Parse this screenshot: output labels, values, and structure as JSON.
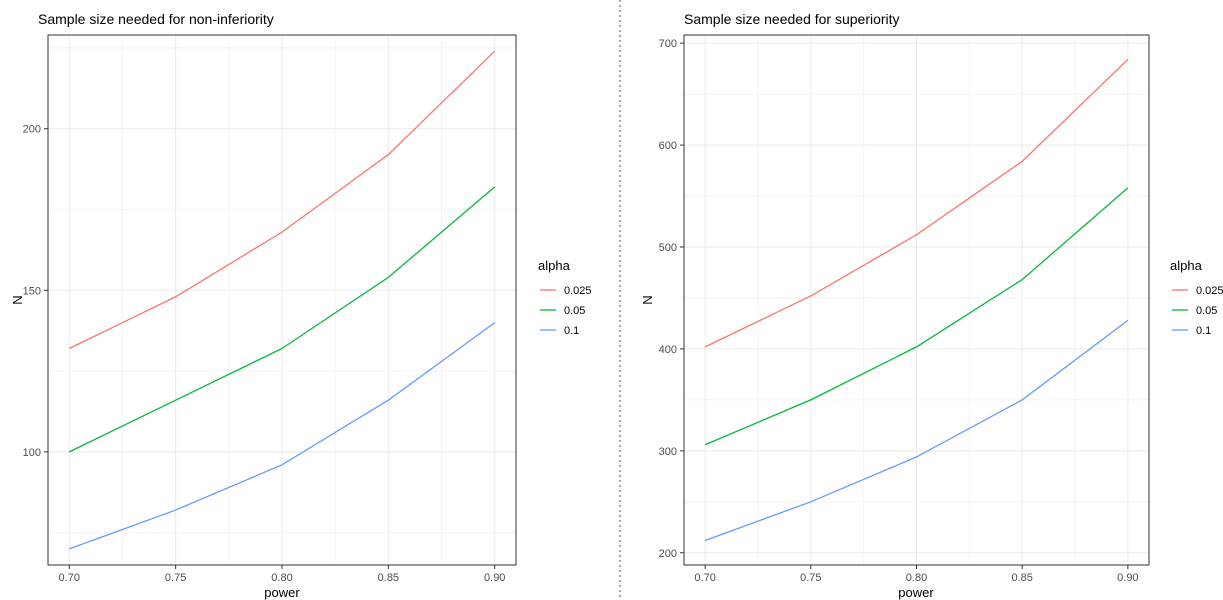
{
  "colors": {
    "0.025": "#F8766D",
    "0.05": "#00BA38",
    "0.1": "#619CFF"
  },
  "chart_data": [
    {
      "type": "line",
      "title": "Sample size needed for non-inferiority",
      "xlabel": "power",
      "ylabel": "N",
      "x": [
        0.7,
        0.75,
        0.8,
        0.85,
        0.9
      ],
      "xticks": [
        "0.70",
        "0.75",
        "0.80",
        "0.85",
        "0.90"
      ],
      "yticks": [
        "100",
        "150",
        "200"
      ],
      "ytick_values": [
        100,
        150,
        200
      ],
      "xlim": [
        0.69,
        0.91
      ],
      "ylim": [
        65,
        229
      ],
      "grid": true,
      "legend_title": "alpha",
      "legend_position": "right",
      "series": [
        {
          "name": "0.025",
          "values": [
            132,
            148,
            168,
            192,
            224
          ]
        },
        {
          "name": "0.05",
          "values": [
            100,
            116,
            132,
            154,
            182
          ]
        },
        {
          "name": "0.1",
          "values": [
            70,
            82,
            96,
            116,
            140
          ]
        }
      ]
    },
    {
      "type": "line",
      "title": "Sample size needed for superiority",
      "xlabel": "power",
      "ylabel": "N",
      "x": [
        0.7,
        0.75,
        0.8,
        0.85,
        0.9
      ],
      "xticks": [
        "0.70",
        "0.75",
        "0.80",
        "0.85",
        "0.90"
      ],
      "yticks": [
        "200",
        "300",
        "400",
        "500",
        "600",
        "700"
      ],
      "ytick_values": [
        200,
        300,
        400,
        500,
        600,
        700
      ],
      "xlim": [
        0.69,
        0.91
      ],
      "ylim": [
        188,
        708
      ],
      "grid": true,
      "legend_title": "alpha",
      "legend_position": "right",
      "series": [
        {
          "name": "0.025",
          "values": [
            402,
            452,
            512,
            584,
            684
          ]
        },
        {
          "name": "0.05",
          "values": [
            306,
            350,
            402,
            468,
            558
          ]
        },
        {
          "name": "0.1",
          "values": [
            212,
            250,
            294,
            350,
            428
          ]
        }
      ]
    }
  ]
}
